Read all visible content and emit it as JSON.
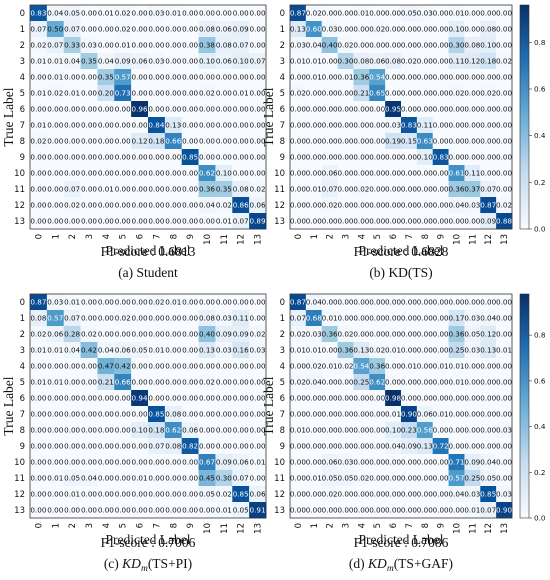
{
  "panels": [
    {
      "ylabel": "True Label",
      "xlabel": "Predicted Label",
      "f1": "F1-score : 0.6813",
      "caption_prefix": "(a)",
      "caption_main": "Student",
      "caption_sub": "",
      "caption_suffix": "",
      "has_colorbar": false
    },
    {
      "ylabel": "True Label",
      "xlabel": "Predicted Label",
      "f1": "F1-score : 0.6828",
      "caption_prefix": "(b)",
      "caption_main": "KD(TS)",
      "caption_sub": "",
      "caption_suffix": "",
      "has_colorbar": true
    },
    {
      "ylabel": "True Label",
      "xlabel": "Predicted Label",
      "f1": "F1-score : 0.7006",
      "caption_prefix": "(c)",
      "caption_main": "KD",
      "caption_sub": "m",
      "caption_suffix": "(TS+PI)",
      "has_colorbar": false
    },
    {
      "ylabel": "True Label",
      "xlabel": "Predicted Label",
      "f1": "F1-score : 0.7086",
      "caption_prefix": "(d)",
      "caption_main": "KD",
      "caption_sub": "m",
      "caption_suffix": "(TS+GAF)",
      "has_colorbar": true
    }
  ],
  "colors": {
    "low": "#f7fbff",
    "mid": "#6baed6",
    "high": "#08306b"
  },
  "chart_data": [
    {
      "type": "heatmap",
      "x_tick_labels": [
        "0",
        "1",
        "2",
        "3",
        "4",
        "5",
        "6",
        "7",
        "8",
        "9",
        "10",
        "11",
        "12",
        "13"
      ],
      "y_tick_labels": [
        "0",
        "1",
        "2",
        "3",
        "4",
        "5",
        "6",
        "7",
        "8",
        "9",
        "10",
        "11",
        "12",
        "13"
      ],
      "xlabel": "Predicted Label",
      "ylabel": "True Label",
      "values": [
        [
          0.83,
          0.04,
          0.05,
          0.0,
          0.01,
          0.02,
          0.0,
          0.03,
          0.01,
          0.0,
          0.0,
          0.0,
          0.0,
          0.0
        ],
        [
          0.07,
          0.5,
          0.07,
          0.0,
          0.0,
          0.02,
          0.0,
          0.0,
          0.0,
          0.0,
          0.08,
          0.06,
          0.09,
          0.0
        ],
        [
          0.02,
          0.07,
          0.33,
          0.03,
          0.0,
          0.01,
          0.0,
          0.0,
          0.0,
          0.0,
          0.38,
          0.08,
          0.07,
          0.0
        ],
        [
          0.01,
          0.01,
          0.04,
          0.35,
          0.04,
          0.09,
          0.06,
          0.03,
          0.0,
          0.0,
          0.1,
          0.06,
          0.1,
          0.07
        ],
        [
          0.0,
          0.01,
          0.0,
          0.0,
          0.35,
          0.57,
          0.0,
          0.0,
          0.0,
          0.0,
          0.0,
          0.0,
          0.0,
          0.0
        ],
        [
          0.01,
          0.02,
          0.01,
          0.0,
          0.2,
          0.73,
          0.0,
          0.0,
          0.0,
          0.0,
          0.02,
          0.0,
          0.01,
          0.0
        ],
        [
          0.0,
          0.0,
          0.0,
          0.0,
          0.0,
          0.0,
          0.96,
          0.0,
          0.0,
          0.0,
          0.0,
          0.0,
          0.0,
          0.0
        ],
        [
          0.01,
          0.0,
          0.0,
          0.0,
          0.0,
          0.0,
          0.0,
          0.84,
          0.13,
          0.0,
          0.0,
          0.0,
          0.0,
          0.0
        ],
        [
          0.02,
          0.0,
          0.0,
          0.0,
          0.0,
          0.0,
          0.12,
          0.18,
          0.66,
          0.0,
          0.0,
          0.0,
          0.0,
          0.0
        ],
        [
          0.0,
          0.0,
          0.0,
          0.0,
          0.0,
          0.0,
          0.0,
          0.0,
          0.0,
          0.85,
          0.0,
          0.0,
          0.0,
          0.0
        ],
        [
          0.0,
          0.0,
          0.0,
          0.0,
          0.0,
          0.0,
          0.0,
          0.0,
          0.0,
          0.0,
          0.62,
          0.1,
          0.0,
          0.0
        ],
        [
          0.0,
          0.0,
          0.07,
          0.0,
          0.01,
          0.0,
          0.0,
          0.0,
          0.0,
          0.0,
          0.36,
          0.35,
          0.08,
          0.02
        ],
        [
          0.0,
          0.0,
          0.02,
          0.0,
          0.0,
          0.0,
          0.0,
          0.0,
          0.0,
          0.0,
          0.04,
          0.02,
          0.86,
          0.06
        ],
        [
          0.0,
          0.0,
          0.0,
          0.0,
          0.0,
          0.0,
          0.0,
          0.0,
          0.0,
          0.0,
          0.0,
          0.01,
          0.07,
          0.89
        ]
      ]
    },
    {
      "type": "heatmap",
      "x_tick_labels": [
        "0",
        "1",
        "2",
        "3",
        "4",
        "5",
        "6",
        "7",
        "8",
        "9",
        "10",
        "11",
        "12",
        "13"
      ],
      "y_tick_labels": [
        "0",
        "1",
        "2",
        "3",
        "4",
        "5",
        "6",
        "7",
        "8",
        "9",
        "10",
        "11",
        "12",
        "13"
      ],
      "xlabel": "Predicted Label",
      "ylabel": "True Label",
      "colorbar_ticks": [
        0.0,
        0.2,
        0.4,
        0.6,
        0.8
      ],
      "colorbar_range": [
        0,
        0.96
      ],
      "values": [
        [
          0.87,
          0.02,
          0.0,
          0.0,
          0.01,
          0.0,
          0.0,
          0.05,
          0.03,
          0.0,
          0.01,
          0.0,
          0.0,
          0.0
        ],
        [
          0.13,
          0.6,
          0.03,
          0.0,
          0.0,
          0.02,
          0.0,
          0.0,
          0.0,
          0.0,
          0.1,
          0.0,
          0.08,
          0.0
        ],
        [
          0.03,
          0.04,
          0.4,
          0.02,
          0.0,
          0.0,
          0.0,
          0.0,
          0.0,
          0.0,
          0.3,
          0.08,
          0.1,
          0.0
        ],
        [
          0.01,
          0.01,
          0.0,
          0.3,
          0.08,
          0.06,
          0.08,
          0.02,
          0.0,
          0.0,
          0.11,
          0.12,
          0.18,
          0.02
        ],
        [
          0.0,
          0.01,
          0.0,
          0.01,
          0.36,
          0.54,
          0.0,
          0.0,
          0.0,
          0.0,
          0.0,
          0.0,
          0.0,
          0.0
        ],
        [
          0.02,
          0.0,
          0.0,
          0.0,
          0.21,
          0.65,
          0.0,
          0.0,
          0.0,
          0.0,
          0.02,
          0.0,
          0.02,
          0.0
        ],
        [
          0.0,
          0.0,
          0.0,
          0.0,
          0.0,
          0.0,
          0.95,
          0.0,
          0.0,
          0.0,
          0.0,
          0.0,
          0.0,
          0.0
        ],
        [
          0.0,
          0.0,
          0.0,
          0.0,
          0.0,
          0.0,
          0.03,
          0.83,
          0.11,
          0.0,
          0.0,
          0.0,
          0.0,
          0.0
        ],
        [
          0.0,
          0.0,
          0.0,
          0.0,
          0.0,
          0.0,
          0.19,
          0.15,
          0.63,
          0.0,
          0.0,
          0.0,
          0.0,
          0.0
        ],
        [
          0.0,
          0.0,
          0.0,
          0.0,
          0.0,
          0.0,
          0.0,
          0.0,
          0.1,
          0.83,
          0.0,
          0.0,
          0.0,
          0.0
        ],
        [
          0.0,
          0.0,
          0.06,
          0.0,
          0.0,
          0.0,
          0.0,
          0.0,
          0.0,
          0.0,
          0.61,
          0.11,
          0.0,
          0.0
        ],
        [
          0.0,
          0.01,
          0.07,
          0.0,
          0.02,
          0.0,
          0.0,
          0.0,
          0.0,
          0.0,
          0.36,
          0.37,
          0.07,
          0.0
        ],
        [
          0.0,
          0.0,
          0.02,
          0.0,
          0.0,
          0.0,
          0.0,
          0.0,
          0.0,
          0.0,
          0.04,
          0.03,
          0.87,
          0.02
        ],
        [
          0.0,
          0.0,
          0.0,
          0.0,
          0.0,
          0.0,
          0.0,
          0.0,
          0.0,
          0.0,
          0.0,
          0.0,
          0.09,
          0.88
        ]
      ]
    },
    {
      "type": "heatmap",
      "x_tick_labels": [
        "0",
        "1",
        "2",
        "3",
        "4",
        "5",
        "6",
        "7",
        "8",
        "9",
        "10",
        "11",
        "12",
        "13"
      ],
      "y_tick_labels": [
        "0",
        "1",
        "2",
        "3",
        "4",
        "5",
        "6",
        "7",
        "8",
        "9",
        "10",
        "11",
        "12",
        "13"
      ],
      "xlabel": "Predicted Label",
      "ylabel": "True Label",
      "values": [
        [
          0.87,
          0.03,
          0.01,
          0.0,
          0.0,
          0.0,
          0.0,
          0.02,
          0.01,
          0.0,
          0.0,
          0.0,
          0.0,
          0.0
        ],
        [
          0.08,
          0.57,
          0.07,
          0.0,
          0.0,
          0.02,
          0.0,
          0.0,
          0.0,
          0.0,
          0.08,
          0.03,
          0.11,
          0.0
        ],
        [
          0.02,
          0.06,
          0.28,
          0.02,
          0.0,
          0.0,
          0.0,
          0.0,
          0.0,
          0.0,
          0.4,
          0.09,
          0.09,
          0.02
        ],
        [
          0.01,
          0.01,
          0.04,
          0.42,
          0.04,
          0.06,
          0.05,
          0.01,
          0.0,
          0.0,
          0.13,
          0.03,
          0.16,
          0.03
        ],
        [
          0.0,
          0.0,
          0.0,
          0.0,
          0.47,
          0.42,
          0.0,
          0.0,
          0.0,
          0.0,
          0.0,
          0.0,
          0.0,
          0.0
        ],
        [
          0.01,
          0.01,
          0.0,
          0.0,
          0.21,
          0.66,
          0.0,
          0.0,
          0.0,
          0.0,
          0.02,
          0.0,
          0.0,
          0.0
        ],
        [
          0.0,
          0.0,
          0.0,
          0.0,
          0.0,
          0.0,
          0.94,
          0.0,
          0.0,
          0.0,
          0.0,
          0.0,
          0.0,
          0.0
        ],
        [
          0.0,
          0.0,
          0.0,
          0.0,
          0.0,
          0.0,
          0.0,
          0.85,
          0.08,
          0.0,
          0.0,
          0.0,
          0.0,
          0.0
        ],
        [
          0.0,
          0.0,
          0.0,
          0.0,
          0.0,
          0.0,
          0.1,
          0.18,
          0.62,
          0.06,
          0.0,
          0.0,
          0.0,
          0.0
        ],
        [
          0.0,
          0.0,
          0.0,
          0.0,
          0.0,
          0.0,
          0.0,
          0.07,
          0.08,
          0.82,
          0.0,
          0.0,
          0.0,
          0.0
        ],
        [
          0.0,
          0.0,
          0.0,
          0.0,
          0.0,
          0.0,
          0.0,
          0.0,
          0.0,
          0.0,
          0.67,
          0.09,
          0.06,
          0.01
        ],
        [
          0.0,
          0.01,
          0.05,
          0.04,
          0.0,
          0.0,
          0.01,
          0.0,
          0.0,
          0.0,
          0.45,
          0.3,
          0.07,
          0.0
        ],
        [
          0.0,
          0.0,
          0.01,
          0.0,
          0.0,
          0.0,
          0.0,
          0.0,
          0.0,
          0.0,
          0.05,
          0.02,
          0.85,
          0.06
        ],
        [
          0.0,
          0.0,
          0.0,
          0.0,
          0.0,
          0.0,
          0.0,
          0.0,
          0.0,
          0.0,
          0.0,
          0.01,
          0.05,
          0.91
        ]
      ]
    },
    {
      "type": "heatmap",
      "x_tick_labels": [
        "0",
        "1",
        "2",
        "3",
        "4",
        "5",
        "6",
        "7",
        "8",
        "9",
        "10",
        "11",
        "12",
        "13"
      ],
      "y_tick_labels": [
        "0",
        "1",
        "2",
        "3",
        "4",
        "5",
        "6",
        "7",
        "8",
        "9",
        "10",
        "11",
        "12",
        "13"
      ],
      "xlabel": "Predicted Label",
      "ylabel": "True Label",
      "colorbar_ticks": [
        0.0,
        0.2,
        0.4,
        0.6,
        0.8
      ],
      "colorbar_range": [
        0,
        0.98
      ],
      "values": [
        [
          0.87,
          0.04,
          0.0,
          0.0,
          0.0,
          0.0,
          0.0,
          0.0,
          0.0,
          0.0,
          0.0,
          0.0,
          0.0,
          0.0
        ],
        [
          0.07,
          0.68,
          0.01,
          0.0,
          0.0,
          0.0,
          0.0,
          0.0,
          0.0,
          0.0,
          0.17,
          0.03,
          0.04,
          0.0
        ],
        [
          0.02,
          0.03,
          0.36,
          0.02,
          0.0,
          0.0,
          0.0,
          0.0,
          0.0,
          0.0,
          0.36,
          0.05,
          0.12,
          0.0
        ],
        [
          0.01,
          0.01,
          0.0,
          0.36,
          0.13,
          0.02,
          0.01,
          0.0,
          0.0,
          0.0,
          0.25,
          0.03,
          0.13,
          0.01
        ],
        [
          0.0,
          0.02,
          0.01,
          0.02,
          0.54,
          0.36,
          0.0,
          0.01,
          0.0,
          0.01,
          0.01,
          0.0,
          0.0,
          0.0
        ],
        [
          0.02,
          0.04,
          0.0,
          0.0,
          0.25,
          0.62,
          0.0,
          0.0,
          0.0,
          0.0,
          0.01,
          0.0,
          0.0,
          0.0
        ],
        [
          0.0,
          0.0,
          0.0,
          0.0,
          0.0,
          0.0,
          0.98,
          0.0,
          0.0,
          0.0,
          0.0,
          0.0,
          0.0,
          0.0
        ],
        [
          0.0,
          0.0,
          0.0,
          0.0,
          0.0,
          0.0,
          0.01,
          0.9,
          0.06,
          0.01,
          0.0,
          0.0,
          0.0,
          0.0
        ],
        [
          0.01,
          0.0,
          0.0,
          0.0,
          0.0,
          0.0,
          0.1,
          0.23,
          0.56,
          0.0,
          0.0,
          0.0,
          0.0,
          0.03
        ],
        [
          0.0,
          0.0,
          0.0,
          0.0,
          0.0,
          0.0,
          0.04,
          0.09,
          0.13,
          0.72,
          0.0,
          0.0,
          0.0,
          0.0
        ],
        [
          0.0,
          0.0,
          0.06,
          0.03,
          0.0,
          0.0,
          0.0,
          0.0,
          0.0,
          0.0,
          0.71,
          0.09,
          0.04,
          0.0
        ],
        [
          0.0,
          0.01,
          0.05,
          0.05,
          0.02,
          0.0,
          0.0,
          0.0,
          0.0,
          0.0,
          0.57,
          0.25,
          0.05,
          0.0
        ],
        [
          0.0,
          0.0,
          0.02,
          0.0,
          0.0,
          0.0,
          0.0,
          0.0,
          0.0,
          0.0,
          0.04,
          0.03,
          0.85,
          0.03
        ],
        [
          0.0,
          0.0,
          0.0,
          0.0,
          0.0,
          0.0,
          0.0,
          0.0,
          0.0,
          0.0,
          0.0,
          0.01,
          0.07,
          0.9
        ]
      ]
    }
  ]
}
